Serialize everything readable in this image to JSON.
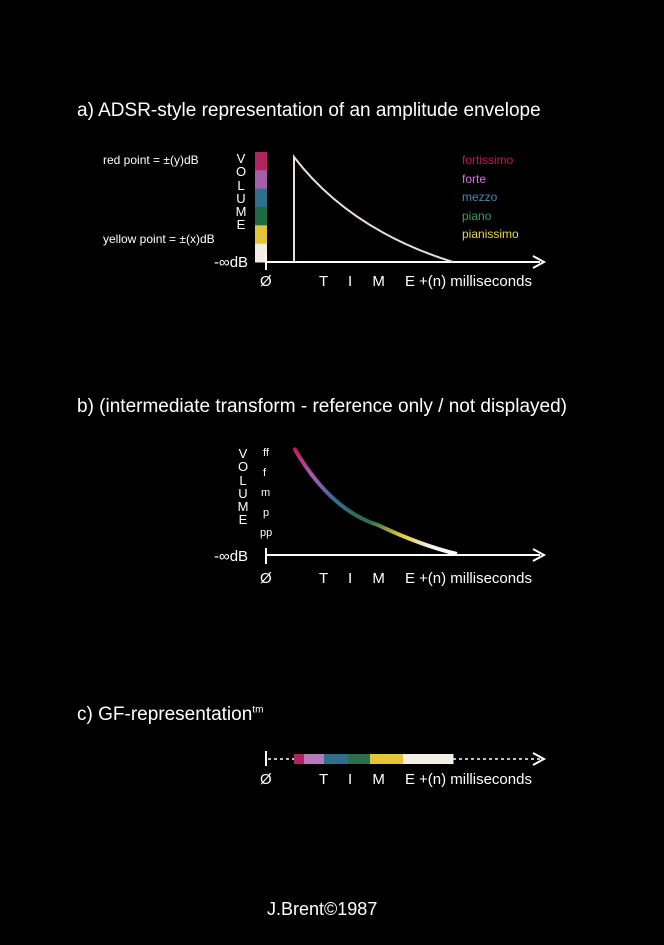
{
  "sections": {
    "a": {
      "title": "a) ADSR-style representation of an amplitude envelope",
      "red_point": "red point = ±(y)dB",
      "yellow_point": "yellow point = ±(x)dB",
      "volume_letters": [
        "V",
        "O",
        "L",
        "U",
        "M",
        "E"
      ],
      "neg_inf": "-∞dB",
      "origin": "Ø",
      "time_label": "T I M E",
      "end_label": "+(n) milliseconds",
      "legend": [
        {
          "label": "fortissimo",
          "color": "#c2185b"
        },
        {
          "label": "forte",
          "color": "#d86fe0"
        },
        {
          "label": "mezzo",
          "color": "#4a86b5"
        },
        {
          "label": "piano",
          "color": "#3f9a5a"
        },
        {
          "label": "pianissimo",
          "color": "#e8d54a"
        }
      ]
    },
    "b": {
      "title": "b) (intermediate transform - reference only / not displayed)",
      "volume_letters": [
        "V",
        "O",
        "L",
        "U",
        "M",
        "E"
      ],
      "dynamics": [
        "ff",
        "f",
        "m",
        "p",
        "pp"
      ],
      "neg_inf": "-∞dB",
      "origin": "Ø",
      "time_label": "T I M E",
      "end_label": "+(n) milliseconds"
    },
    "c": {
      "title": "c) GF-representation",
      "title_sup": "tm",
      "origin": "Ø",
      "time_label": "T I M E",
      "end_label": "+(n) milliseconds"
    }
  },
  "volume_bar_colors": [
    "#b3245e",
    "#a35ea8",
    "#2f6f8e",
    "#1f6a45",
    "#e3c53c",
    "#f2ece4"
  ],
  "gf_bar_colors": [
    "#b3245e",
    "#b77ab8",
    "#2f6f8e",
    "#2b6e4a",
    "#e3c53c",
    "#f4efe7"
  ],
  "credit": "J.Brent©1987"
}
